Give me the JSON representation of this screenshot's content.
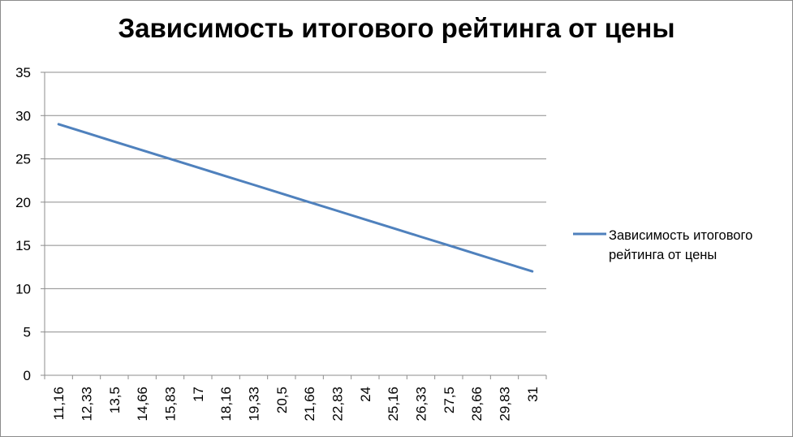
{
  "chart_data": {
    "type": "line",
    "title": "Зависимость итогового рейтинга от цены",
    "xlabel": "",
    "ylabel": "",
    "categories": [
      "11,16",
      "12,33",
      "13,5",
      "14,66",
      "15,83",
      "17",
      "18,16",
      "19,33",
      "20,5",
      "21,66",
      "22,83",
      "24",
      "25,16",
      "26,33",
      "27,5",
      "28,66",
      "29,83",
      "31"
    ],
    "series": [
      {
        "name": "Зависимость итогового рейтинга от цены",
        "values": [
          29,
          28,
          27,
          26,
          25,
          24,
          23,
          22,
          21,
          20,
          19,
          18,
          17,
          16,
          15,
          14,
          13,
          12
        ],
        "color": "#4f81bd"
      }
    ],
    "ylim": [
      0,
      35
    ],
    "yticks": [
      "0",
      "5",
      "10",
      "15",
      "20",
      "25",
      "30",
      "35"
    ],
    "grid": true,
    "legend_position": "right"
  }
}
